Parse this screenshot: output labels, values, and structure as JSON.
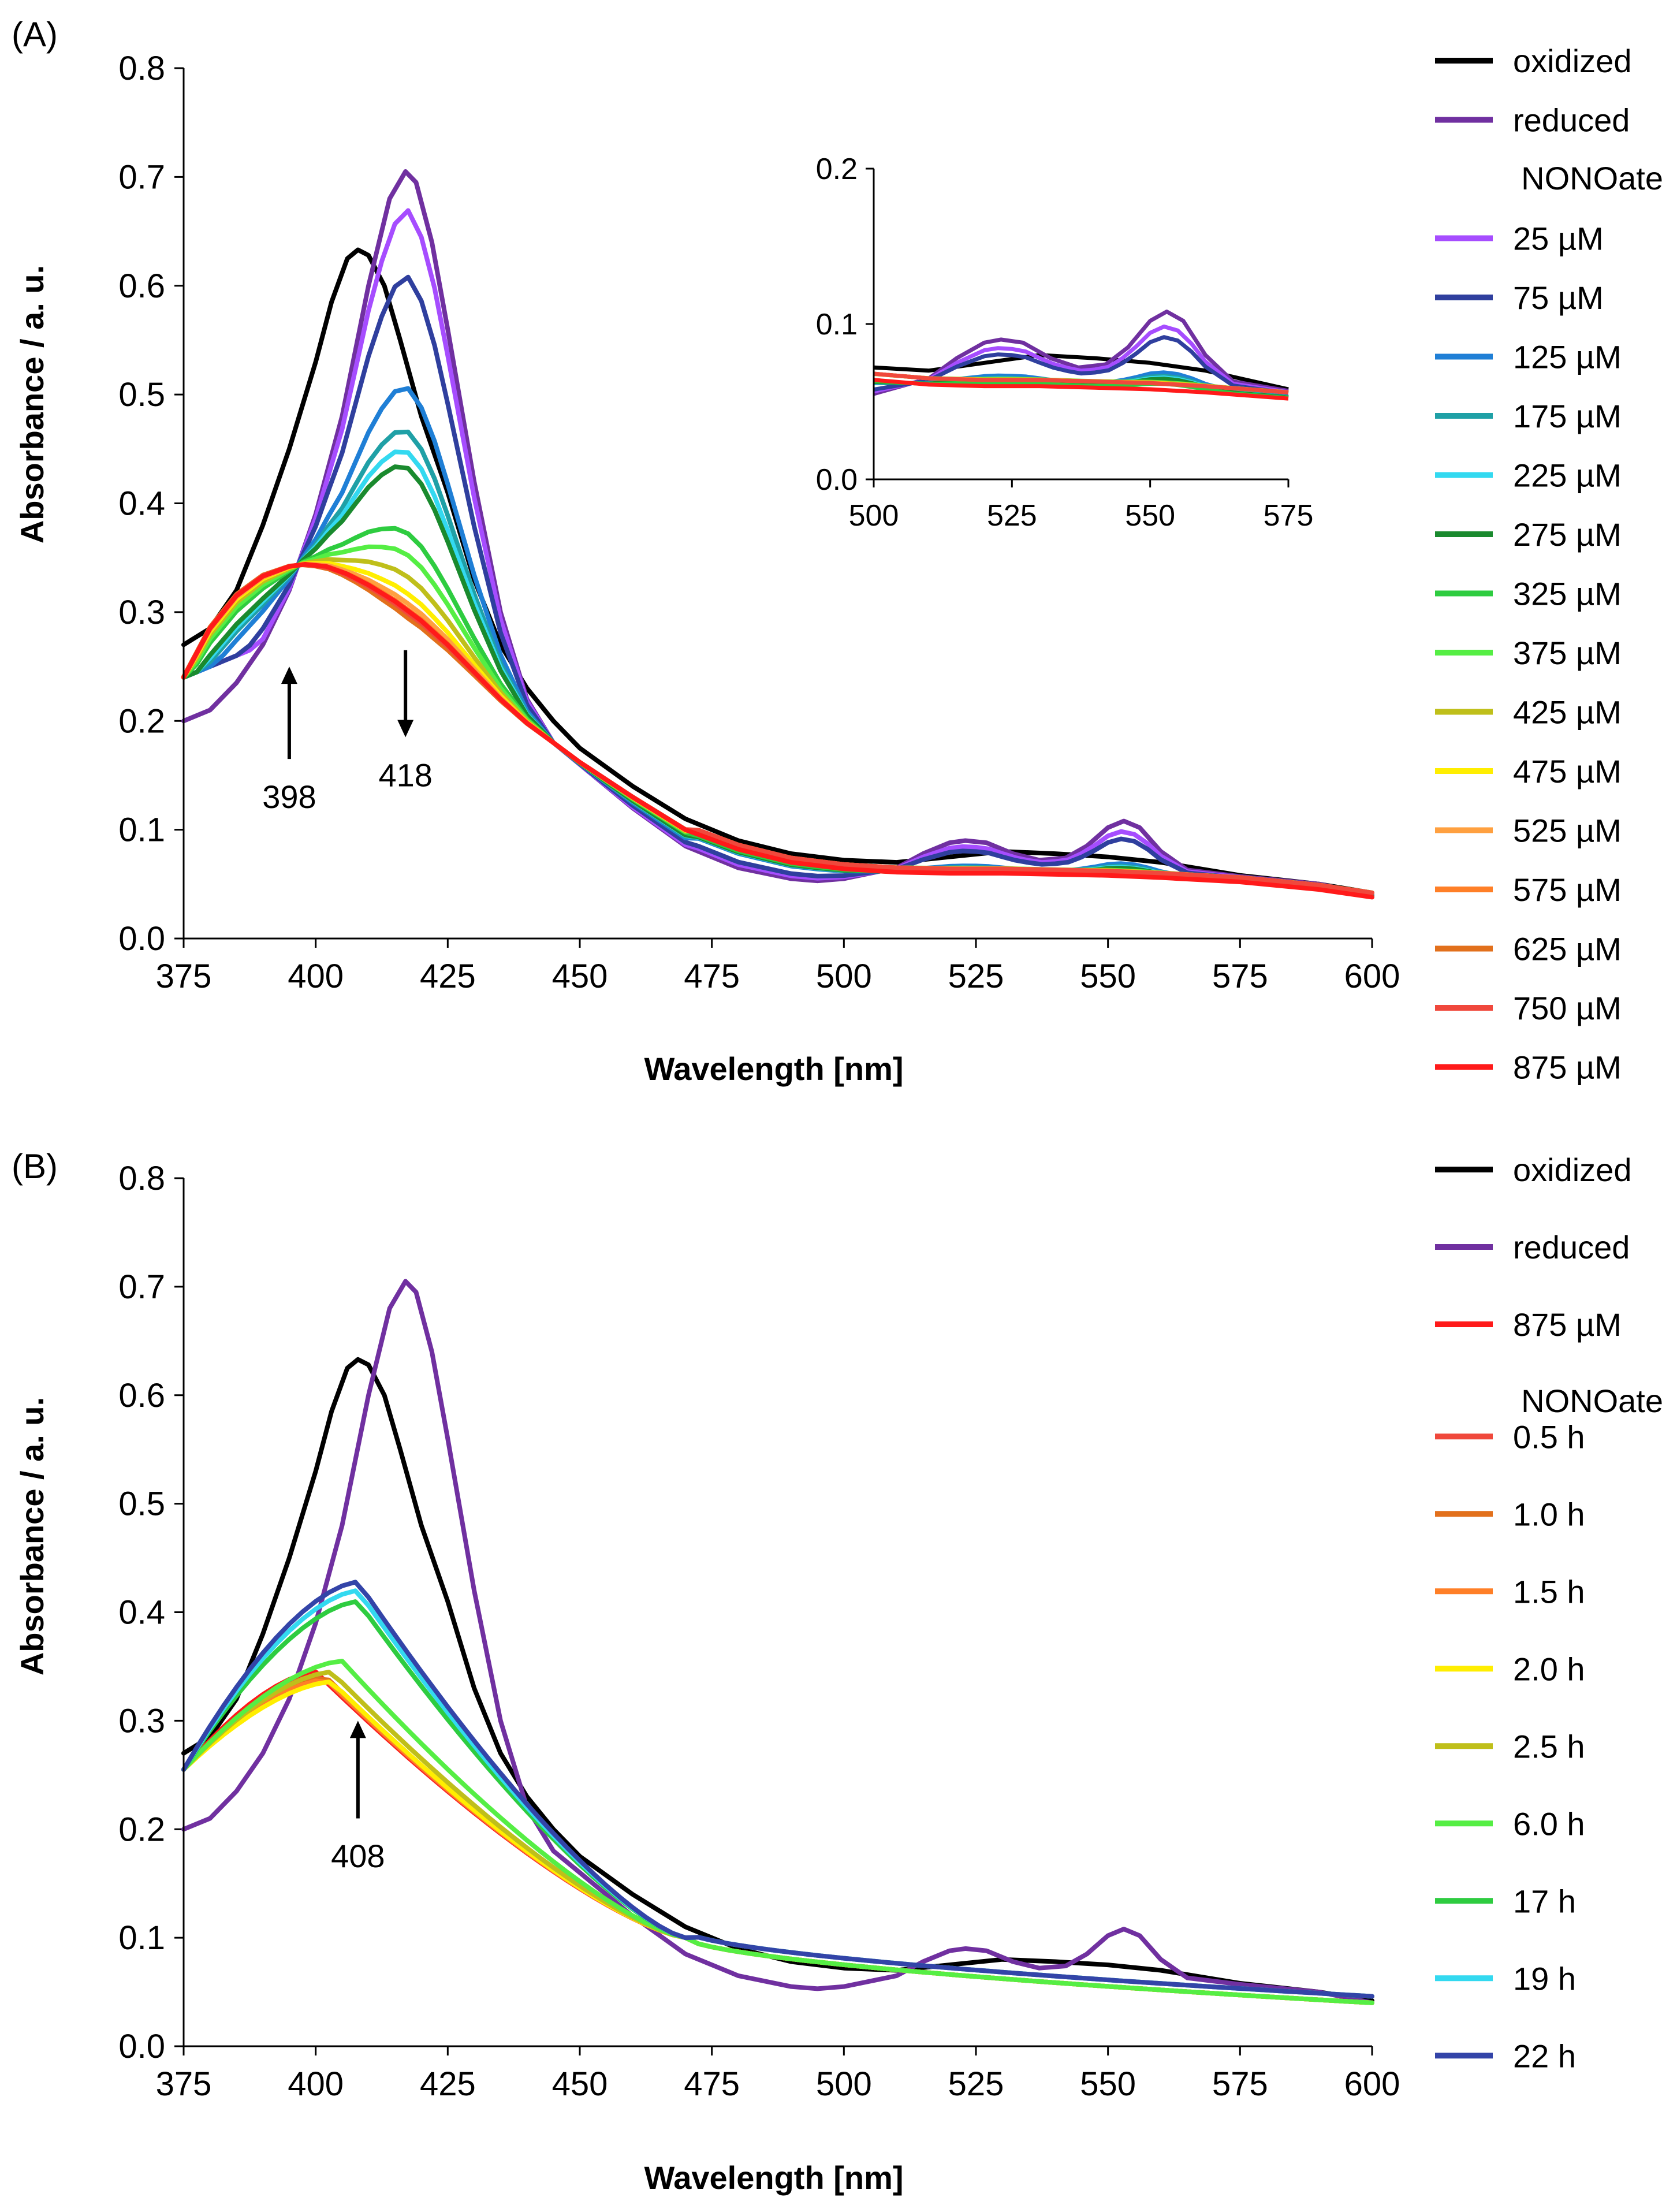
{
  "chart_data": [
    {
      "panel": "(A)",
      "type": "line",
      "title": "",
      "xlabel": "Wavelength [nm]",
      "ylabel": "Absorbance / a. u.",
      "xlim": [
        375,
        600
      ],
      "ylim": [
        0.0,
        0.8
      ],
      "xticks": [
        "375",
        "400",
        "425",
        "450",
        "475",
        "500",
        "525",
        "550",
        "575",
        "600"
      ],
      "yticks": [
        "0.0",
        "0.1",
        "0.2",
        "0.3",
        "0.4",
        "0.5",
        "0.6",
        "0.7",
        "0.8"
      ],
      "grid": false,
      "legend_position": "right",
      "legend_heading": "NONOate",
      "annotations": [
        {
          "label": "398",
          "x": 395,
          "arrow": "up",
          "y_from": 0.165,
          "y_to": 0.25,
          "label_y": 0.12
        },
        {
          "label": "418",
          "x": 417,
          "arrow": "down",
          "y_from": 0.265,
          "y_to": 0.185,
          "label_y": 0.14
        }
      ],
      "inset": {
        "xlim": [
          500,
          575
        ],
        "ylim": [
          0.0,
          0.2
        ],
        "xticks": [
          "500",
          "525",
          "550",
          "575"
        ],
        "yticks": [
          "0.0",
          "0.1",
          "0.2"
        ]
      },
      "series": [
        {
          "name": "oxidized",
          "color": "#000000",
          "points": [
            [
              375,
              0.27
            ],
            [
              380,
              0.285
            ],
            [
              385,
              0.32
            ],
            [
              390,
              0.38
            ],
            [
              395,
              0.45
            ],
            [
              400,
              0.53
            ],
            [
              403,
              0.585
            ],
            [
              406,
              0.625
            ],
            [
              408,
              0.633
            ],
            [
              410,
              0.628
            ],
            [
              413,
              0.6
            ],
            [
              416,
              0.55
            ],
            [
              420,
              0.48
            ],
            [
              425,
              0.41
            ],
            [
              430,
              0.33
            ],
            [
              435,
              0.27
            ],
            [
              440,
              0.23
            ],
            [
              445,
              0.2
            ],
            [
              450,
              0.175
            ],
            [
              460,
              0.14
            ],
            [
              470,
              0.11
            ],
            [
              480,
              0.09
            ],
            [
              490,
              0.078
            ],
            [
              500,
              0.072
            ],
            [
              510,
              0.07
            ],
            [
              520,
              0.075
            ],
            [
              530,
              0.08
            ],
            [
              540,
              0.078
            ],
            [
              550,
              0.075
            ],
            [
              560,
              0.07
            ],
            [
              575,
              0.058
            ],
            [
              590,
              0.05
            ],
            [
              600,
              0.042
            ]
          ]
        },
        {
          "name": "reduced",
          "color": "#7030a0",
          "points": [
            [
              375,
              0.2
            ],
            [
              380,
              0.21
            ],
            [
              385,
              0.235
            ],
            [
              390,
              0.27
            ],
            [
              395,
              0.32
            ],
            [
              400,
              0.39
            ],
            [
              405,
              0.48
            ],
            [
              410,
              0.6
            ],
            [
              414,
              0.68
            ],
            [
              417,
              0.705
            ],
            [
              419,
              0.695
            ],
            [
              422,
              0.64
            ],
            [
              425,
              0.56
            ],
            [
              430,
              0.42
            ],
            [
              435,
              0.3
            ],
            [
              440,
              0.22
            ],
            [
              445,
              0.18
            ],
            [
              450,
              0.16
            ],
            [
              460,
              0.12
            ],
            [
              470,
              0.085
            ],
            [
              480,
              0.065
            ],
            [
              490,
              0.055
            ],
            [
              495,
              0.053
            ],
            [
              500,
              0.055
            ],
            [
              505,
              0.06
            ],
            [
              510,
              0.065
            ],
            [
              515,
              0.078
            ],
            [
              520,
              0.088
            ],
            [
              523,
              0.09
            ],
            [
              527,
              0.088
            ],
            [
              532,
              0.078
            ],
            [
              537,
              0.072
            ],
            [
              542,
              0.074
            ],
            [
              546,
              0.085
            ],
            [
              550,
              0.102
            ],
            [
              553,
              0.108
            ],
            [
              556,
              0.102
            ],
            [
              560,
              0.08
            ],
            [
              565,
              0.063
            ],
            [
              575,
              0.057
            ],
            [
              590,
              0.05
            ],
            [
              600,
              0.04
            ]
          ]
        },
        {
          "name": "25 µM",
          "color": "#a64dff",
          "peak": 0.675,
          "tail": "reduced"
        },
        {
          "name": "75 µM",
          "color": "#2f3f9e",
          "peak": 0.62,
          "tail": "reduced"
        },
        {
          "name": "125 µM",
          "color": "#1f7fd6",
          "peak": 0.528,
          "tail": "mid"
        },
        {
          "name": "175 µM",
          "color": "#1fa0a6",
          "peak": 0.492,
          "tail": "mid"
        },
        {
          "name": "225 µM",
          "color": "#33d9f0",
          "peak": 0.475,
          "tail": "mid"
        },
        {
          "name": "275 µM",
          "color": "#1a8a2e",
          "peak": 0.462,
          "tail": "mid"
        },
        {
          "name": "325 µM",
          "color": "#2ecc40",
          "peak": 0.408,
          "tail": "mid"
        },
        {
          "name": "375 µM",
          "color": "#55ee44",
          "peak": 0.39,
          "tail": "flat"
        },
        {
          "name": "425 µM",
          "color": "#bfbf1a",
          "peak": 0.372,
          "tail": "flat"
        },
        {
          "name": "475 µM",
          "color": "#ffee00",
          "peak": 0.358,
          "tail": "flat"
        },
        {
          "name": "525 µM",
          "color": "#ffa040",
          "peak": 0.35,
          "tail": "flat"
        },
        {
          "name": "575 µM",
          "color": "#ff7f27",
          "peak": 0.345,
          "tail": "flat"
        },
        {
          "name": "625 µM",
          "color": "#e2701c",
          "peak": 0.338,
          "tail": "flat"
        },
        {
          "name": "750 µM",
          "color": "#f0483c",
          "peak": 0.342,
          "tail": "flat"
        },
        {
          "name": "875 µM",
          "color": "#ff1a1a",
          "points": [
            [
              375,
              0.24
            ],
            [
              380,
              0.285
            ],
            [
              385,
              0.315
            ],
            [
              390,
              0.333
            ],
            [
              395,
              0.342
            ],
            [
              398,
              0.344
            ],
            [
              402,
              0.342
            ],
            [
              406,
              0.335
            ],
            [
              410,
              0.325
            ],
            [
              415,
              0.31
            ],
            [
              420,
              0.292
            ],
            [
              425,
              0.27
            ],
            [
              430,
              0.245
            ],
            [
              435,
              0.22
            ],
            [
              440,
              0.198
            ],
            [
              445,
              0.18
            ],
            [
              450,
              0.162
            ],
            [
              460,
              0.13
            ],
            [
              470,
              0.1
            ],
            [
              480,
              0.082
            ],
            [
              490,
              0.07
            ],
            [
              500,
              0.064
            ],
            [
              510,
              0.061
            ],
            [
              520,
              0.06
            ],
            [
              530,
              0.06
            ],
            [
              540,
              0.059
            ],
            [
              550,
              0.058
            ],
            [
              560,
              0.056
            ],
            [
              575,
              0.052
            ],
            [
              590,
              0.045
            ],
            [
              600,
              0.038
            ]
          ]
        }
      ]
    },
    {
      "panel": "(B)",
      "type": "line",
      "title": "",
      "xlabel": "Wavelength [nm]",
      "ylabel": "Absorbance / a. u.",
      "xlim": [
        375,
        600
      ],
      "ylim": [
        0.0,
        0.8
      ],
      "xticks": [
        "375",
        "400",
        "425",
        "450",
        "475",
        "500",
        "525",
        "550",
        "575",
        "600"
      ],
      "yticks": [
        "0.0",
        "0.1",
        "0.2",
        "0.3",
        "0.4",
        "0.5",
        "0.6",
        "0.7",
        "0.8"
      ],
      "grid": false,
      "legend_position": "right",
      "legend_heading": "NONOate",
      "annotations": [
        {
          "label": "408",
          "x": 408,
          "arrow": "up",
          "y_from": 0.21,
          "y_to": 0.3,
          "label_y": 0.165
        }
      ],
      "series": [
        {
          "name": "oxidized",
          "color": "#000000",
          "ref": "A.oxidized"
        },
        {
          "name": "reduced",
          "color": "#7030a0",
          "ref": "A.reduced"
        },
        {
          "name": "875 µM",
          "color": "#ff1a1a",
          "shape": {
            "peakX": 400,
            "peak": 0.345
          }
        },
        {
          "name": "0.5 h",
          "color": "#f0483c",
          "shape": {
            "peakX": 401,
            "peak": 0.342
          }
        },
        {
          "name": "1.0 h",
          "color": "#e2701c",
          "shape": {
            "peakX": 402,
            "peak": 0.34
          }
        },
        {
          "name": "1.5 h",
          "color": "#ff7f27",
          "shape": {
            "peakX": 402,
            "peak": 0.338
          }
        },
        {
          "name": "2.0 h",
          "color": "#ffee00",
          "shape": {
            "peakX": 403,
            "peak": 0.336
          }
        },
        {
          "name": "2.5 h",
          "color": "#bfbf1a",
          "shape": {
            "peakX": 403,
            "peak": 0.345
          }
        },
        {
          "name": "6.0 h",
          "color": "#55ee44",
          "shape": {
            "peakX": 405,
            "peak": 0.355
          }
        },
        {
          "name": "17  h",
          "color": "#2ecc40",
          "shape": {
            "peakX": 408,
            "peak": 0.41
          }
        },
        {
          "name": "19  h",
          "color": "#33d9f0",
          "shape": {
            "peakX": 408,
            "peak": 0.42
          }
        },
        {
          "name": "22  h",
          "color": "#3344a8",
          "shape": {
            "peakX": 408,
            "peak": 0.428
          }
        }
      ]
    }
  ]
}
